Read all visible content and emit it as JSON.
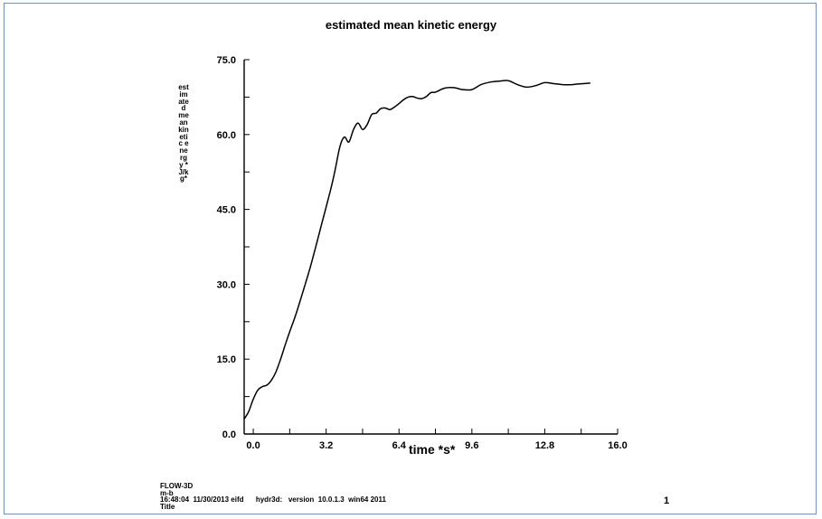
{
  "chart_data": {
    "type": "line",
    "title": "estimated mean kinetic energy",
    "xlabel": "time *s*",
    "ylabel": "estimated mean kinetic energy *J/kg*",
    "xlim": [
      -0.4,
      16.0
    ],
    "ylim": [
      0.0,
      75.0
    ],
    "x_ticks": [
      "0.0",
      "3.2",
      "6.4",
      "9.6",
      "12.8",
      "16.0"
    ],
    "y_ticks": [
      "0.0",
      "15.0",
      "30.0",
      "45.0",
      "60.0",
      "75.0"
    ],
    "grid": false,
    "series": [
      {
        "x": [
          -0.4,
          -0.2,
          0.0,
          0.2,
          0.4,
          0.6,
          0.8,
          1.0,
          1.2,
          1.4,
          1.6,
          1.8,
          2.0,
          2.2,
          2.4,
          2.6,
          2.8,
          3.0,
          3.2,
          3.4,
          3.6,
          3.8,
          4.0,
          4.2,
          4.4,
          4.6,
          4.8,
          5.0,
          5.2,
          5.4,
          5.6,
          5.8,
          6.0,
          6.2,
          6.4,
          6.6,
          6.8,
          7.0,
          7.2,
          7.4,
          7.6,
          7.8,
          8.0,
          8.4,
          8.8,
          9.2,
          9.6,
          10.0,
          10.4,
          10.8,
          11.2,
          11.6,
          12.0,
          12.4,
          12.8,
          13.2,
          13.6,
          14.0,
          14.2,
          14.5,
          14.8
        ],
        "y": [
          3.0,
          4.5,
          7.0,
          8.8,
          9.5,
          9.8,
          10.8,
          12.5,
          15.0,
          17.8,
          20.5,
          23.0,
          25.8,
          28.8,
          31.8,
          35.0,
          38.5,
          42.0,
          45.5,
          49.0,
          53.0,
          57.5,
          59.5,
          58.5,
          61.0,
          62.3,
          61.0,
          62.0,
          64.0,
          64.3,
          65.2,
          65.3,
          65.0,
          65.5,
          66.2,
          67.0,
          67.5,
          67.6,
          67.3,
          67.2,
          67.6,
          68.4,
          68.5,
          69.3,
          69.4,
          69.0,
          69.0,
          70.0,
          70.5,
          70.7,
          70.8,
          70.0,
          69.5,
          69.8,
          70.4,
          70.2,
          70.0,
          70.0,
          70.1,
          70.2,
          70.3
        ]
      }
    ]
  },
  "footer": {
    "line1": "FLOW-3D",
    "line2": "m-b",
    "line3": "16:48:04  11/30/2013 eifd      hydr3d:   version  10.0.1.3  win64 2011",
    "line4": "Title"
  },
  "page_number": "1"
}
